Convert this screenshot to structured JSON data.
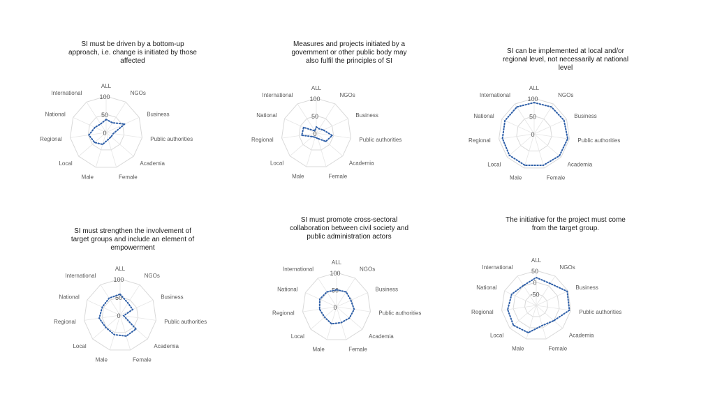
{
  "chart_data": [
    {
      "type": "radar",
      "title": "SI must be driven by a bottom-up approach, i.e. change is initiated by those affected",
      "categories": [
        "ALL",
        "NGOs",
        "Business",
        "Public authorities",
        "Academia",
        "Female",
        "Male",
        "Local",
        "Regional",
        "National",
        "International"
      ],
      "rlim": [
        0,
        100
      ],
      "ticks": [
        "100",
        "50",
        "0"
      ],
      "ticks_values": [
        100,
        50,
        0
      ],
      "series": [
        {
          "values": [
            36,
            32,
            56,
            20,
            18,
            20,
            34,
            42,
            48,
            34,
            28
          ],
          "color": "#2e5fa8"
        }
      ],
      "grid": true
    },
    {
      "type": "radar",
      "title": "Measures and projects initiated by a government or other public body may also fulfil the principles of SI",
      "categories": [
        "ALL",
        "NGOs",
        "Business",
        "Public authorities",
        "Academia",
        "Female",
        "Male",
        "Local",
        "Regional",
        "National",
        "International"
      ],
      "rlim": [
        0,
        100
      ],
      "ticks": [
        "100",
        "50",
        "0"
      ],
      "ticks_values": [
        100,
        50,
        0
      ],
      "series": [
        {
          "values": [
            18,
            15,
            22,
            46,
            36,
            16,
            12,
            15,
            42,
            40,
            8
          ],
          "color": "#2e5fa8"
        }
      ],
      "grid": true
    },
    {
      "type": "radar",
      "title": "SI can be implemented at local and/or regional level, not necessarily at national level",
      "categories": [
        "ALL",
        "NGOs",
        "Business",
        "Public authorities",
        "Academia",
        "Female",
        "Male",
        "Local",
        "Regional",
        "National",
        "International"
      ],
      "rlim": [
        0,
        100
      ],
      "ticks": [
        "100",
        "50",
        "0"
      ],
      "ticks_values": [
        100,
        50,
        0
      ],
      "series": [
        {
          "values": [
            88,
            90,
            92,
            95,
            94,
            92,
            92,
            92,
            90,
            90,
            90
          ],
          "color": "#2e5fa8"
        }
      ],
      "grid": true
    },
    {
      "type": "radar",
      "title": "SI must strengthen the involvement of target groups and include an element of empowerment",
      "categories": [
        "ALL",
        "NGOs",
        "Business",
        "Public authorities",
        "Academia",
        "Female",
        "Male",
        "Local",
        "Regional",
        "National",
        "International"
      ],
      "rlim": [
        0,
        100
      ],
      "ticks": [
        "100",
        "50",
        "0"
      ],
      "ticks_values": [
        100,
        50,
        0
      ],
      "series": [
        {
          "values": [
            58,
            40,
            38,
            10,
            58,
            60,
            56,
            52,
            58,
            54,
            56
          ],
          "color": "#2e5fa8"
        }
      ],
      "grid": true
    },
    {
      "type": "radar",
      "title": "SI must promote cross-sectoral collaboration between civil society and public administration actors",
      "categories": [
        "ALL",
        "NGOs",
        "Business",
        "Public authorities",
        "Academia",
        "Female",
        "Male",
        "Local",
        "Regional",
        "National",
        "International"
      ],
      "rlim": [
        0,
        100
      ],
      "ticks": [
        "100",
        "50",
        "0"
      ],
      "ticks_values": [
        100,
        50,
        0
      ],
      "series": [
        {
          "values": [
            50,
            52,
            46,
            52,
            50,
            48,
            52,
            46,
            50,
            54,
            52
          ],
          "color": "#2e5fa8"
        }
      ],
      "grid": true
    },
    {
      "type": "radar",
      "title": "The initiative for the project must come from the target group.",
      "categories": [
        "ALL",
        "NGOs",
        "Business",
        "Public authorities",
        "Academia",
        "Female",
        "Male",
        "Local",
        "Regional",
        "National",
        "International"
      ],
      "rlim": [
        -100,
        50
      ],
      "ticks": [
        "50",
        "0",
        "-50"
      ],
      "ticks_values": [
        50,
        0,
        -50
      ],
      "series": [
        {
          "values": [
            20,
            12,
            46,
            44,
            0,
            -10,
            22,
            30,
            24,
            16,
            2
          ],
          "color": "#2e5fa8"
        }
      ],
      "grid": true
    }
  ]
}
